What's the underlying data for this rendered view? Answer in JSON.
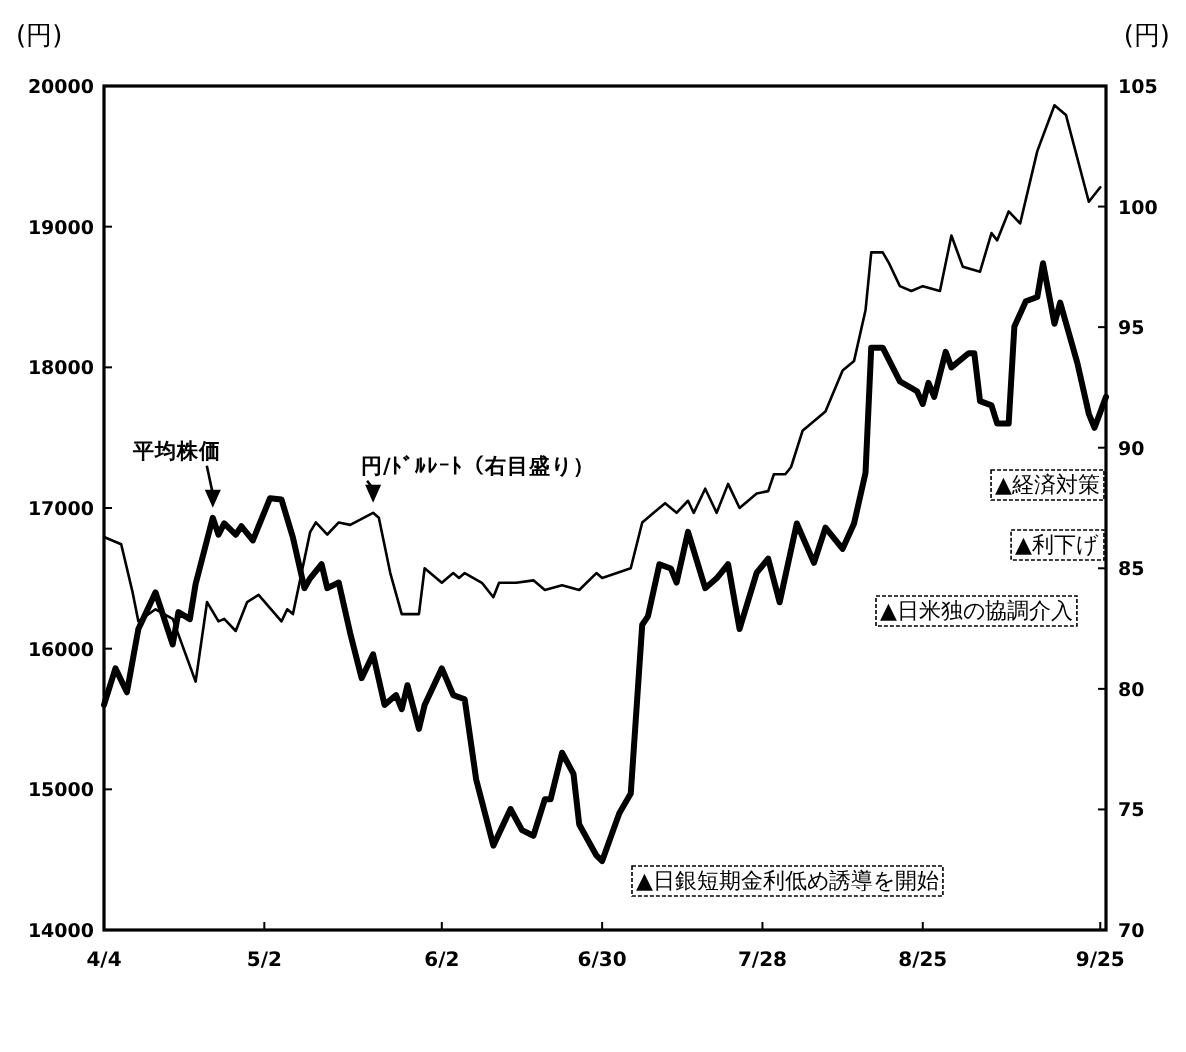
{
  "chart_data": {
    "type": "line",
    "ylabel": "(円)",
    "y2label": "(円)",
    "xlim": [
      "--04-04",
      "--09-26"
    ],
    "xticks": [
      {
        "value": "--04-04",
        "label": "4/4"
      },
      {
        "value": "--05-02",
        "label": "5/2"
      },
      {
        "value": "--06-02",
        "label": "6/2"
      },
      {
        "value": "--06-30",
        "label": "6/30"
      },
      {
        "value": "--07-28",
        "label": "7/28"
      },
      {
        "value": "--08-25",
        "label": "8/25"
      },
      {
        "value": "--09-25",
        "label": "9/25"
      }
    ],
    "ylim": [
      14000,
      20000
    ],
    "yticks": [
      14000,
      15000,
      16000,
      17000,
      18000,
      19000,
      20000
    ],
    "y2lim": [
      70,
      105
    ],
    "y2ticks": [
      70,
      75,
      80,
      85,
      90,
      95,
      100,
      105
    ],
    "grid": false,
    "marker": "none",
    "line_style": "solid",
    "series": [
      {
        "name": "平均株価",
        "color": "#000000",
        "x": [
          "--04-04",
          "--04-06",
          "--04-08",
          "--04-10",
          "--04-13",
          "--04-16",
          "--04-17",
          "--04-19",
          "--04-20",
          "--04-23",
          "--04-24",
          "--04-25",
          "--04-27",
          "--04-28",
          "--04-30",
          "--05-03",
          "--05-05",
          "--05-07",
          "--05-09",
          "--05-10",
          "--05-12",
          "--05-13",
          "--05-15",
          "--05-17",
          "--05-19",
          "--05-21",
          "--05-23",
          "--05-25",
          "--05-26",
          "--05-27",
          "--05-29",
          "--05-30",
          "--06-02",
          "--06-04",
          "--06-06",
          "--06-08",
          "--06-11",
          "--06-14",
          "--06-16",
          "--06-18",
          "--06-20",
          "--06-21",
          "--06-23",
          "--06-25",
          "--06-26",
          "--06-29",
          "--06-30",
          "--07-03",
          "--07-05",
          "--07-07",
          "--07-08",
          "--07-10",
          "--07-12",
          "--07-13",
          "--07-15",
          "--07-18",
          "--07-20",
          "--07-22",
          "--07-24",
          "--07-27",
          "--07-29",
          "--07-31",
          "--08-03",
          "--08-06",
          "--08-08",
          "--08-11",
          "--08-13",
          "--08-15",
          "--08-16",
          "--08-18",
          "--08-21",
          "--08-24",
          "--08-25",
          "--08-26",
          "--08-27",
          "--08-29",
          "--08-30",
          "--09-02",
          "--09-03",
          "--09-04",
          "--09-06",
          "--09-07",
          "--09-09",
          "--09-10",
          "--09-12",
          "--09-14",
          "--09-15",
          "--09-17",
          "--09-18",
          "--09-21",
          "--09-23",
          "--09-24",
          "--09-26"
        ],
        "values": [
          15600,
          15860,
          15690,
          16140,
          16400,
          16030,
          16260,
          16210,
          16460,
          16930,
          16810,
          16890,
          16810,
          16870,
          16770,
          17070,
          17060,
          16790,
          16430,
          16500,
          16600,
          16430,
          16470,
          16110,
          15790,
          15960,
          15600,
          15670,
          15570,
          15740,
          15430,
          15600,
          15860,
          15670,
          15640,
          15070,
          14600,
          14860,
          14710,
          14670,
          14930,
          14930,
          15260,
          15110,
          14750,
          14530,
          14490,
          14830,
          14970,
          16170,
          16230,
          16600,
          16570,
          16470,
          16830,
          16430,
          16500,
          16600,
          16140,
          16540,
          16640,
          16330,
          16890,
          16610,
          16860,
          16710,
          16890,
          17250,
          18140,
          18140,
          17900,
          17830,
          17740,
          17890,
          17790,
          18110,
          18000,
          18100,
          18100,
          17760,
          17730,
          17600,
          17600,
          18290,
          18470,
          18500,
          18740,
          18310,
          18460,
          18030,
          17670,
          17570,
          17790
        ]
      },
      {
        "name": "円/ﾄﾞﾙﾚｰﾄ（右目盛り）",
        "color": "#000000",
        "axis": "y2",
        "x": [
          "--04-04",
          "--04-07",
          "--04-09",
          "--04-10",
          "--04-13",
          "--04-16",
          "--04-20",
          "--04-22",
          "--04-24",
          "--04-25",
          "--04-27",
          "--04-29",
          "--05-01",
          "--05-05",
          "--05-06",
          "--05-07",
          "--05-10",
          "--05-11",
          "--05-13",
          "--05-15",
          "--05-17",
          "--05-21",
          "--05-22",
          "--05-24",
          "--05-26",
          "--05-29",
          "--05-30",
          "--06-02",
          "--06-04",
          "--06-05",
          "--06-06",
          "--06-09",
          "--06-11",
          "--06-12",
          "--06-15",
          "--06-18",
          "--06-20",
          "--06-23",
          "--06-26",
          "--06-29",
          "--06-30",
          "--07-05",
          "--07-07",
          "--07-09",
          "--07-11",
          "--07-13",
          "--07-15",
          "--07-16",
          "--07-18",
          "--07-20",
          "--07-22",
          "--07-24",
          "--07-27",
          "--07-29",
          "--07-30",
          "--08-01",
          "--08-02",
          "--08-04",
          "--08-08",
          "--08-11",
          "--08-13",
          "--08-15",
          "--08-16",
          "--08-18",
          "--08-19",
          "--08-21",
          "--08-23",
          "--08-25",
          "--08-28",
          "--08-30",
          "--09-01",
          "--09-04",
          "--09-06",
          "--09-07",
          "--09-09",
          "--09-11",
          "--09-14",
          "--09-17",
          "--09-19",
          "--09-23",
          "--09-25"
        ],
        "values": [
          86.3,
          86.0,
          84.0,
          82.8,
          83.3,
          82.9,
          80.3,
          83.6,
          82.8,
          82.9,
          82.4,
          83.6,
          83.9,
          82.8,
          83.3,
          83.1,
          86.5,
          86.9,
          86.4,
          86.9,
          86.8,
          87.3,
          87.1,
          84.8,
          83.1,
          83.1,
          85.0,
          84.4,
          84.8,
          84.6,
          84.8,
          84.4,
          83.8,
          84.4,
          84.4,
          84.5,
          84.1,
          84.3,
          84.1,
          84.8,
          84.6,
          85.0,
          86.9,
          87.3,
          87.7,
          87.3,
          87.8,
          87.3,
          88.3,
          87.3,
          88.5,
          87.5,
          88.1,
          88.2,
          88.9,
          88.9,
          89.2,
          90.7,
          91.5,
          93.2,
          93.6,
          95.7,
          98.1,
          98.1,
          97.7,
          96.7,
          96.5,
          96.7,
          96.5,
          98.8,
          97.5,
          97.3,
          98.9,
          98.6,
          99.8,
          99.3,
          102.3,
          104.2,
          103.8,
          100.2,
          100.8
        ]
      }
    ],
    "annotations": [
      "▲日銀短期金利低め誘導を開始",
      "▲日米独の協調介入",
      "▲利下げ",
      "▲経済対策"
    ]
  }
}
